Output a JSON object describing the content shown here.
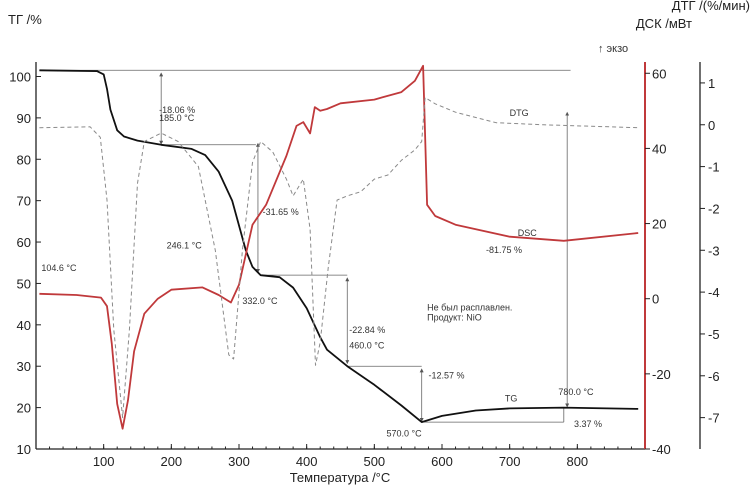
{
  "chart_data": {
    "type": "line",
    "titles": {
      "tg_axis": "ТГ /%",
      "dtg_axis": "ДТГ /(%/мин)",
      "dsc_axis": "ДСК /мВт",
      "exo": "↑ экзо",
      "xlabel": "Температура /°C"
    },
    "xlim": [
      0,
      900
    ],
    "xticks": [
      100,
      200,
      300,
      400,
      500,
      600,
      700,
      800
    ],
    "tg_ylim": [
      10,
      103.5
    ],
    "tg_yticks": [
      10,
      20,
      30,
      40,
      50,
      60,
      70,
      80,
      90,
      100
    ],
    "dsc_ylim": [
      -40,
      63
    ],
    "dsc_yticks": [
      -40,
      -20,
      0,
      20,
      40,
      60
    ],
    "dtg_ylim": [
      -7.75,
      1.5
    ],
    "dtg_yticks": [
      1,
      0,
      -1,
      -2,
      -3,
      -4,
      -5,
      -6,
      -7
    ],
    "colors": {
      "tg": "#111111",
      "dsc": "#c0393b",
      "dtg": "#8a8a8a",
      "dsc_axis": "#c0393b"
    },
    "series": [
      {
        "name": "TG",
        "axis": "tg",
        "style": "solid",
        "x": [
          5,
          90,
          100,
          105,
          110,
          120,
          130,
          150,
          185,
          230,
          250,
          270,
          290,
          300,
          310,
          320,
          332,
          360,
          380,
          400,
          420,
          430,
          460,
          500,
          540,
          570,
          600,
          650,
          700,
          780,
          890
        ],
        "y": [
          101.5,
          101.3,
          100.5,
          97,
          92,
          87,
          85.5,
          84.5,
          83.5,
          82.5,
          81,
          77,
          70,
          64,
          58,
          54,
          52,
          51.5,
          49,
          44,
          37,
          34,
          30,
          25.5,
          20.5,
          16.5,
          18,
          19.3,
          19.8,
          20,
          19.7
        ]
      },
      {
        "name": "DSC",
        "axis": "dsc",
        "style": "solid",
        "x": [
          5,
          60,
          96,
          105,
          112,
          120,
          128,
          136,
          145,
          160,
          180,
          200,
          246,
          270,
          288,
          300,
          320,
          340,
          370,
          385,
          395,
          405,
          412,
          420,
          430,
          450,
          500,
          540,
          560,
          572,
          578,
          590,
          620,
          700,
          780,
          890
        ],
        "y": [
          1.3,
          1,
          0.3,
          -2,
          -12,
          -28,
          -34.6,
          -27,
          -14,
          -4,
          0,
          2.4,
          3,
          1,
          -1,
          3.7,
          19.7,
          25,
          38,
          46,
          47,
          44,
          51,
          50,
          50.5,
          52,
          53,
          55,
          58,
          62,
          25,
          22,
          19.7,
          16.5,
          15.4,
          17.5
        ]
      },
      {
        "name": "DTG",
        "axis": "dtg",
        "style": "dashed",
        "x": [
          5,
          80,
          95,
          105,
          115,
          128,
          138,
          150,
          160,
          185,
          210,
          240,
          265,
          285,
          292,
          305,
          320,
          332,
          350,
          370,
          380,
          395,
          405,
          413,
          420,
          432,
          445,
          460,
          480,
          500,
          520,
          540,
          560,
          570,
          575,
          590,
          620,
          680,
          750,
          890
        ],
        "y": [
          -0.07,
          -0.05,
          -0.3,
          -1.8,
          -4.9,
          -7,
          -4.9,
          -1.4,
          -0.4,
          -0.2,
          -0.4,
          -1,
          -3,
          -5.5,
          -5.6,
          -3,
          -0.9,
          -0.4,
          -0.65,
          -1.3,
          -1.7,
          -1.3,
          -2.5,
          -5.75,
          -5.2,
          -3.4,
          -1.8,
          -1.7,
          -1.6,
          -1.3,
          -1.2,
          -0.85,
          -0.6,
          -0.4,
          0.65,
          0.5,
          0.3,
          0.05,
          0,
          -0.07
        ]
      }
    ],
    "annotations": [
      {
        "text": "-18.06 %",
        "x": 182,
        "y": 91.2,
        "color": "#333"
      },
      {
        "text": "185.0 °C",
        "x": 182,
        "y": 89.2,
        "color": "#333"
      },
      {
        "text": "-31.65 %",
        "x": 335,
        "y": 66.5,
        "color": "#333"
      },
      {
        "text": "332.0 °C",
        "x": 305,
        "y": 45,
        "color": "#333"
      },
      {
        "text": "-22.84 %",
        "x": 463,
        "y": 38,
        "color": "#333"
      },
      {
        "text": "460.0 °C",
        "x": 463,
        "y": 34.3,
        "color": "#333"
      },
      {
        "text": "-12.57 %",
        "x": 580,
        "y": 27,
        "color": "#333"
      },
      {
        "text": "570.0 °C",
        "x": 518,
        "y": 13,
        "color": "#333"
      },
      {
        "text": "780.0 °C",
        "x": 772,
        "y": 23,
        "color": "#333"
      },
      {
        "text": "3.37 %",
        "x": 795,
        "y": 15.3,
        "color": "#333"
      },
      {
        "text": "-81.75 %",
        "x": 665,
        "y": 57.3,
        "color": "#333"
      },
      {
        "text": "104.6 °C",
        "x": 8,
        "y": 53,
        "color": "#c0393b"
      },
      {
        "text": "246.1 °C",
        "x": 193,
        "y": 58.5,
        "color": "#c0393b"
      },
      {
        "text": "DTG",
        "x": 700,
        "y": 90.5,
        "color": "#333"
      },
      {
        "text": "DSC",
        "x": 712,
        "y": 61.5,
        "color": "#c0393b"
      },
      {
        "text": "TG",
        "x": 693,
        "y": 21.5,
        "color": "#111"
      },
      {
        "text": "Не был расплавлен.",
        "x": 578,
        "y": 43.5,
        "color": "#333"
      },
      {
        "text": "Продукт: NiO",
        "x": 578,
        "y": 41,
        "color": "#333"
      }
    ],
    "step_lines": [
      {
        "x1": 5,
        "y1": 101.5,
        "x2": 790,
        "y2": 101.5
      },
      {
        "x1": 185,
        "y1": 84,
        "x2": 185,
        "y2": 100.5,
        "arrow": true
      },
      {
        "x1": 185,
        "y1": 83.5,
        "x2": 325,
        "y2": 83.5
      },
      {
        "x1": 328,
        "y1": 83.5,
        "x2": 328,
        "y2": 53,
        "arrow": true
      },
      {
        "x1": 332,
        "y1": 52,
        "x2": 460,
        "y2": 52
      },
      {
        "x1": 460,
        "y1": 31,
        "x2": 460,
        "y2": 51,
        "arrow": true
      },
      {
        "x1": 460,
        "y1": 30,
        "x2": 570,
        "y2": 30
      },
      {
        "x1": 570,
        "y1": 17,
        "x2": 570,
        "y2": 29,
        "arrow": true
      },
      {
        "x1": 570,
        "y1": 16.5,
        "x2": 780,
        "y2": 16.5
      },
      {
        "x1": 785,
        "y1": 91,
        "x2": 785,
        "y2": 20.5,
        "arrow": true
      },
      {
        "x1": 780,
        "y1": 20,
        "x2": 780,
        "y2": 16.5
      }
    ]
  }
}
